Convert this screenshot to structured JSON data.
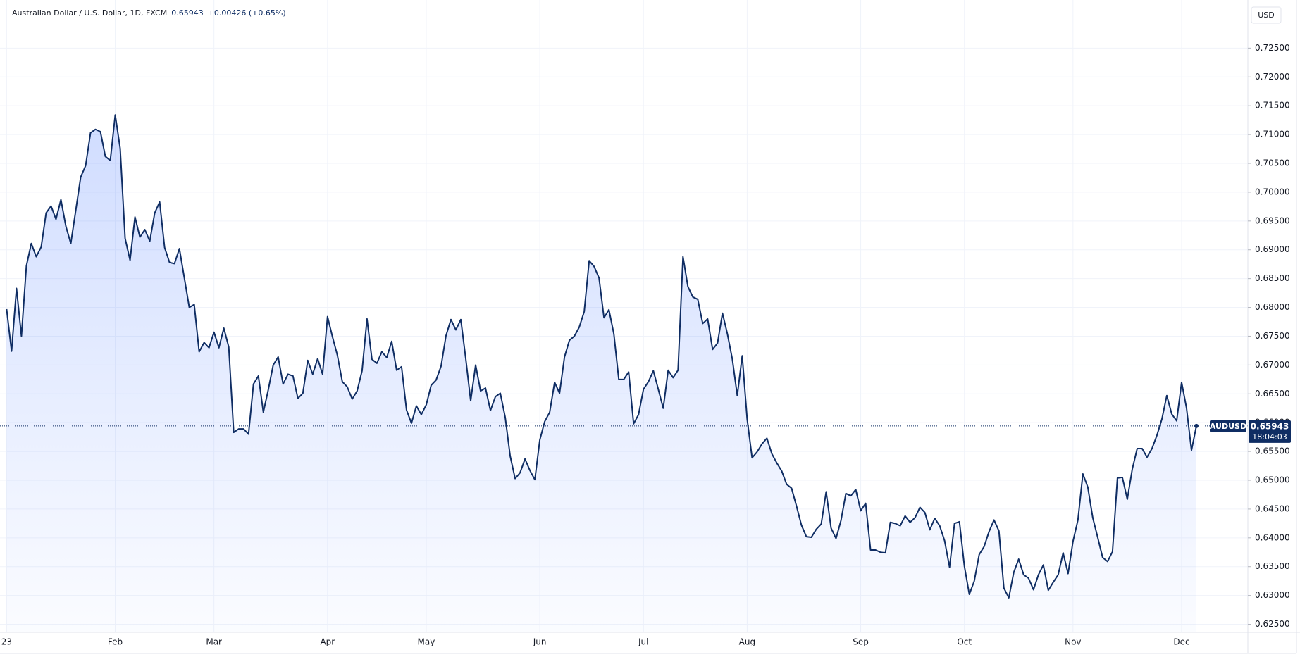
{
  "chart_data": {
    "type": "area",
    "title": "Australian Dollar / U.S. Dollar, 1D, FXCM",
    "last_price": 0.65943,
    "change": "+0.00426 (+0.65%)",
    "currency": "USD",
    "symbol": "AUDUSD",
    "countdown": "18:04:03",
    "grid": true,
    "categories": [
      "23",
      null,
      null,
      null,
      null,
      null,
      null,
      null,
      null,
      null,
      null,
      null,
      null,
      null,
      null,
      null,
      null,
      null,
      null,
      null,
      null,
      null,
      "Feb",
      null,
      null,
      null,
      null,
      null,
      null,
      null,
      null,
      null,
      null,
      null,
      null,
      null,
      null,
      null,
      null,
      null,
      null,
      null,
      "Mar",
      null,
      null,
      null,
      null,
      null,
      null,
      null,
      null,
      null,
      null,
      null,
      null,
      null,
      null,
      null,
      null,
      null,
      null,
      null,
      null,
      null,
      null,
      "Apr",
      null,
      null,
      null,
      null,
      null,
      null,
      null,
      null,
      null,
      null,
      null,
      null,
      null,
      null,
      null,
      null,
      null,
      null,
      null,
      "May",
      null,
      null,
      null,
      null,
      null,
      null,
      null,
      null,
      null,
      null,
      null,
      null,
      null,
      null,
      null,
      null,
      null,
      null,
      null,
      null,
      null,
      null,
      "Jun",
      null,
      null,
      null,
      null,
      null,
      null,
      null,
      null,
      null,
      null,
      null,
      null,
      null,
      null,
      null,
      null,
      null,
      null,
      null,
      null,
      "Jul",
      null,
      null,
      null,
      null,
      null,
      null,
      null,
      null,
      null,
      null,
      null,
      null,
      null,
      null,
      null,
      null,
      null,
      null,
      null,
      null,
      "Aug",
      null,
      null,
      null,
      null,
      null,
      null,
      null,
      null,
      null,
      null,
      null,
      null,
      null,
      null,
      null,
      null,
      null,
      null,
      null,
      null,
      null,
      null,
      "Sep",
      null,
      null,
      null,
      null,
      null,
      null,
      null,
      null,
      null,
      null,
      null,
      null,
      null,
      null,
      null,
      null,
      null,
      null,
      null,
      null,
      "Oct",
      null,
      null,
      null,
      null,
      null,
      null,
      null,
      null,
      null,
      null,
      null,
      null,
      null,
      null,
      null,
      null,
      null,
      null,
      null,
      null,
      null,
      "Nov",
      null,
      null,
      null,
      null,
      null,
      null,
      null,
      null,
      null,
      null,
      null,
      null,
      null,
      null,
      null,
      null,
      null,
      null,
      null,
      null,
      null,
      "Dec",
      null,
      null,
      null
    ],
    "series": [
      {
        "name": "AUDUSD",
        "color": "#0f2d63",
        "values": [
          0.6797,
          0.6724,
          0.6833,
          0.675,
          0.6872,
          0.6911,
          0.6888,
          0.6905,
          0.6964,
          0.6976,
          0.6953,
          0.6987,
          0.6941,
          0.6911,
          0.6968,
          0.7026,
          0.7046,
          0.7103,
          0.7109,
          0.7105,
          0.7062,
          0.7055,
          0.7134,
          0.7076,
          0.692,
          0.6882,
          0.6957,
          0.6922,
          0.6935,
          0.6915,
          0.6964,
          0.6983,
          0.6904,
          0.6878,
          0.6876,
          0.6902,
          0.6851,
          0.68,
          0.6805,
          0.6723,
          0.6739,
          0.673,
          0.6757,
          0.673,
          0.6764,
          0.6731,
          0.6583,
          0.6589,
          0.6589,
          0.658,
          0.6667,
          0.6681,
          0.6618,
          0.6657,
          0.67,
          0.6714,
          0.6667,
          0.6684,
          0.6681,
          0.6642,
          0.6651,
          0.6708,
          0.6684,
          0.6711,
          0.6684,
          0.6784,
          0.6749,
          0.6717,
          0.6671,
          0.6662,
          0.6641,
          0.6655,
          0.669,
          0.678,
          0.671,
          0.6703,
          0.6723,
          0.6713,
          0.6741,
          0.6691,
          0.6697,
          0.6622,
          0.6599,
          0.6629,
          0.6614,
          0.6631,
          0.6665,
          0.6674,
          0.6698,
          0.6751,
          0.6779,
          0.6761,
          0.6779,
          0.6711,
          0.6638,
          0.67,
          0.6655,
          0.666,
          0.6621,
          0.6645,
          0.6651,
          0.6609,
          0.6542,
          0.6503,
          0.6513,
          0.6537,
          0.6517,
          0.6501,
          0.657,
          0.6602,
          0.6618,
          0.667,
          0.6651,
          0.6714,
          0.6743,
          0.675,
          0.6766,
          0.6793,
          0.6881,
          0.6871,
          0.6851,
          0.6782,
          0.6796,
          0.6754,
          0.6675,
          0.6675,
          0.6688,
          0.6598,
          0.6614,
          0.6658,
          0.6671,
          0.669,
          0.6658,
          0.6625,
          0.6691,
          0.6678,
          0.6691,
          0.6888,
          0.6836,
          0.6818,
          0.6814,
          0.6772,
          0.678,
          0.6727,
          0.6738,
          0.679,
          0.6754,
          0.671,
          0.6647,
          0.6716,
          0.6606,
          0.6539,
          0.6549,
          0.6563,
          0.6573,
          0.6546,
          0.653,
          0.6516,
          0.6493,
          0.6486,
          0.6455,
          0.6422,
          0.6402,
          0.6401,
          0.6415,
          0.6424,
          0.648,
          0.6417,
          0.6399,
          0.643,
          0.6477,
          0.6473,
          0.6484,
          0.6447,
          0.646,
          0.6379,
          0.6379,
          0.6375,
          0.6374,
          0.6427,
          0.6425,
          0.6421,
          0.6438,
          0.6427,
          0.6435,
          0.6453,
          0.6444,
          0.6414,
          0.6434,
          0.6421,
          0.6395,
          0.6349,
          0.6425,
          0.6428,
          0.6351,
          0.6302,
          0.6325,
          0.6371,
          0.6385,
          0.6411,
          0.6431,
          0.6412,
          0.6313,
          0.6296,
          0.634,
          0.6363,
          0.6336,
          0.633,
          0.631,
          0.6336,
          0.6353,
          0.6309,
          0.6323,
          0.6336,
          0.6374,
          0.6338,
          0.6394,
          0.6431,
          0.6511,
          0.6488,
          0.6435,
          0.6401,
          0.6366,
          0.6359,
          0.6376,
          0.6504,
          0.6505,
          0.6467,
          0.6519,
          0.6555,
          0.6555,
          0.654,
          0.6555,
          0.6578,
          0.6606,
          0.6647,
          0.6615,
          0.6603,
          0.667,
          0.6625,
          0.6552,
          0.65943
        ]
      }
    ],
    "ylim": [
      0.6236,
      0.7325
    ],
    "yticks": [
      {
        "value": 0.625,
        "label": "0.62500"
      },
      {
        "value": 0.63,
        "label": "0.63000"
      },
      {
        "value": 0.635,
        "label": "0.63500"
      },
      {
        "value": 0.64,
        "label": "0.64000"
      },
      {
        "value": 0.645,
        "label": "0.64500"
      },
      {
        "value": 0.65,
        "label": "0.65000"
      },
      {
        "value": 0.655,
        "label": "0.65500"
      },
      {
        "value": 0.66,
        "label": "0.66000"
      },
      {
        "value": 0.665,
        "label": "0.66500"
      },
      {
        "value": 0.67,
        "label": "0.67000"
      },
      {
        "value": 0.675,
        "label": "0.67500"
      },
      {
        "value": 0.68,
        "label": "0.68000"
      },
      {
        "value": 0.685,
        "label": "0.68500"
      },
      {
        "value": 0.69,
        "label": "0.69000"
      },
      {
        "value": 0.695,
        "label": "0.69500"
      },
      {
        "value": 0.7,
        "label": "0.70000"
      },
      {
        "value": 0.705,
        "label": "0.70500"
      },
      {
        "value": 0.71,
        "label": "0.71000"
      },
      {
        "value": 0.715,
        "label": "0.71500"
      },
      {
        "value": 0.72,
        "label": "0.72000"
      },
      {
        "value": 0.725,
        "label": "0.72500"
      }
    ]
  }
}
